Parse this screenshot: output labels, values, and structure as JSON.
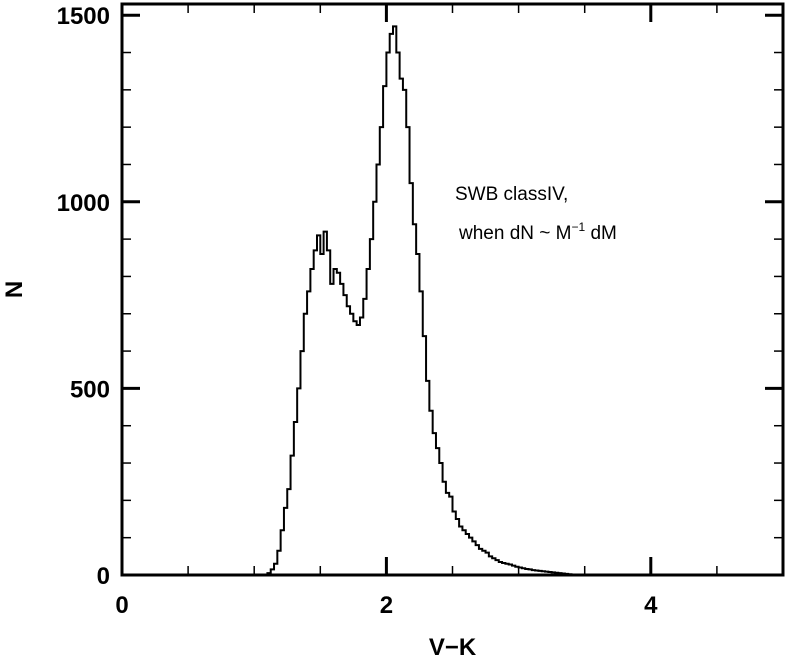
{
  "chart_data": {
    "type": "histogram",
    "xlabel": "V−K",
    "ylabel": "N",
    "xlim": [
      0,
      5.0
    ],
    "ylim": [
      0,
      1530
    ],
    "xticks": {
      "major": [
        0,
        2,
        4
      ],
      "major_labels": [
        "0",
        "2",
        "4"
      ],
      "minor_step": 0.5
    },
    "yticks": {
      "major": [
        0,
        500,
        1000,
        1500
      ],
      "major_labels": [
        "0",
        "500",
        "1000",
        "1500"
      ],
      "minor_step": 100
    },
    "annotation": {
      "line1": "SWB classIV,",
      "line2_pre": "when dN ~ M",
      "line2_sup": "−1",
      "line2_post": " dM"
    },
    "bin_width": 0.025,
    "series": [
      {
        "x_start": 1.1,
        "values": [
          5,
          15,
          30,
          65,
          120,
          180,
          230,
          320,
          410,
          500,
          600,
          700,
          760,
          820,
          870,
          910,
          860,
          920,
          870,
          780,
          820,
          810,
          780,
          750,
          720,
          700,
          680,
          670,
          690,
          740,
          820,
          900,
          1000,
          1100,
          1200,
          1310,
          1400,
          1450,
          1470,
          1400,
          1330,
          1300,
          1200,
          1050,
          940,
          860,
          760,
          640,
          520,
          440,
          380,
          340,
          300,
          250,
          220,
          210,
          170,
          150,
          130,
          120,
          110,
          100,
          90,
          80,
          70,
          65,
          60,
          50,
          45,
          40,
          35,
          32,
          30,
          28,
          25,
          22,
          20,
          18,
          16,
          15,
          13,
          12,
          11,
          10,
          9,
          8,
          7,
          6,
          5,
          4,
          3,
          2,
          1
        ]
      }
    ],
    "line_color": "#000000",
    "frame_color": "#000000"
  }
}
